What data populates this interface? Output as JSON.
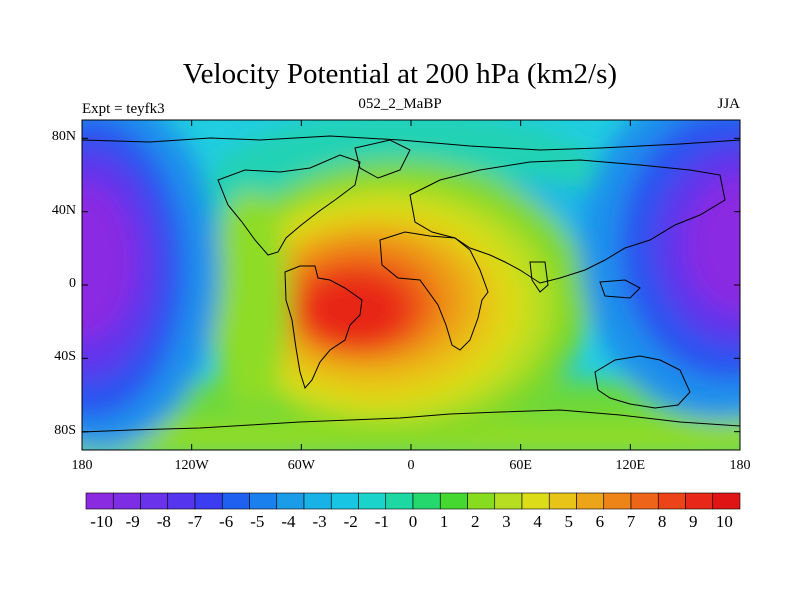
{
  "map": {
    "title": "Velocity Potential at 200 hPa (km2/s)",
    "left_label": "Expt = teyfk3",
    "center_label": "052_2_MaBP",
    "right_label": "JJA",
    "lat_ticks": [
      "80N",
      "40N",
      "0",
      "40S",
      "80S"
    ],
    "lon_ticks": [
      "180",
      "120W",
      "60W",
      "0",
      "60E",
      "120E",
      "180"
    ],
    "colorbar_ticks": [
      "-10",
      "-9",
      "-8",
      "-7",
      "-6",
      "-5",
      "-4",
      "-3",
      "-2",
      "-1",
      "0",
      "1",
      "2",
      "3",
      "4",
      "5",
      "6",
      "7",
      "8",
      "9",
      "10"
    ],
    "colorbar_colors": [
      "#8a2be2",
      "#7d2ee5",
      "#6a32ea",
      "#5536ee",
      "#3c3cf0",
      "#2060f0",
      "#1a80ee",
      "#1a9ce8",
      "#19b2e6",
      "#18c6e4",
      "#1ad4cc",
      "#1ed8a4",
      "#24d86e",
      "#44d830",
      "#88dc20",
      "#b8de22",
      "#dcdc18",
      "#e8c418",
      "#eca418",
      "#ee8418",
      "#ee6418",
      "#ec4418",
      "#e82818",
      "#e01414"
    ],
    "colorbar_range": [
      -10.5,
      10.5
    ]
  }
}
